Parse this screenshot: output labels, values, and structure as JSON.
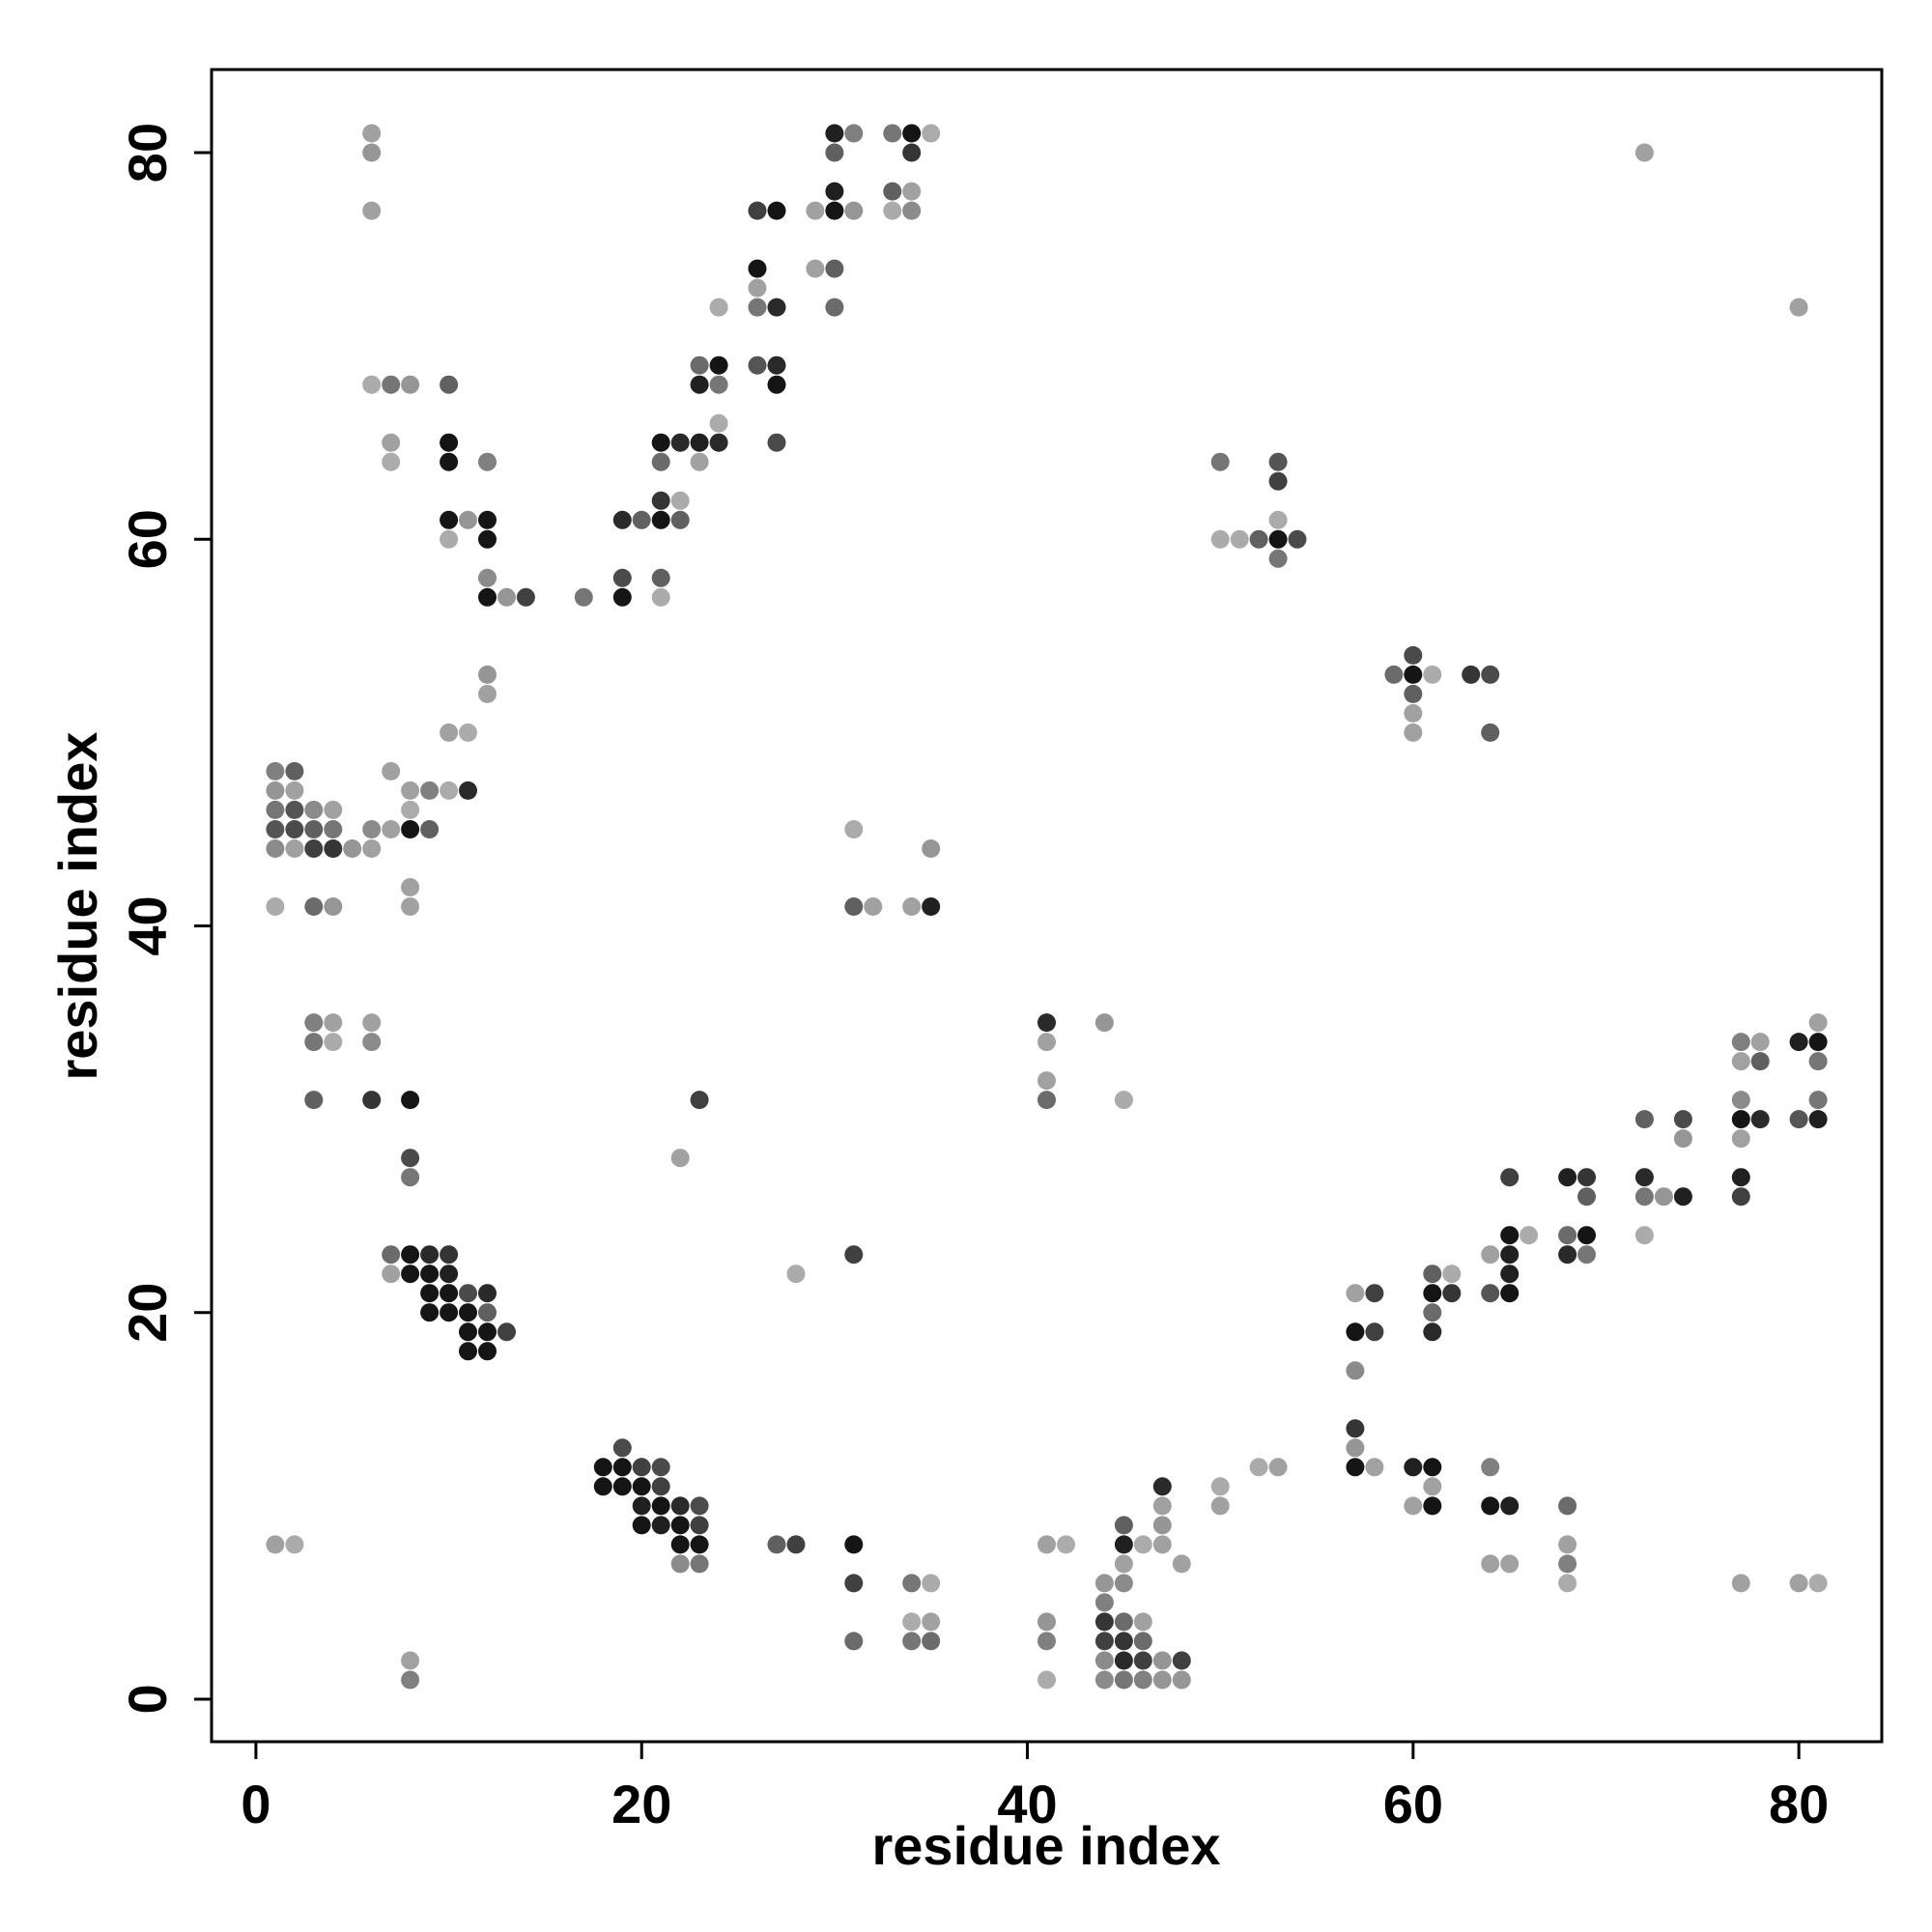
{
  "chart_data": {
    "type": "scatter",
    "title": "",
    "xlabel": "residue index",
    "ylabel": "residue index",
    "xlim": [
      -2.3,
      84.3
    ],
    "ylim": [
      -2.2,
      84.3
    ],
    "xticks": [
      0,
      20,
      40,
      60,
      80
    ],
    "yticks": [
      0,
      20,
      40,
      60,
      80
    ],
    "grid": false,
    "legend": "none",
    "points": [
      [
        1,
        8,
        0.3
      ],
      [
        2,
        8,
        0.25
      ],
      [
        8,
        2,
        0.3
      ],
      [
        8,
        1,
        0.45
      ],
      [
        1,
        48,
        0.45
      ],
      [
        2,
        48,
        0.6
      ],
      [
        1,
        47,
        0.35
      ],
      [
        2,
        47,
        0.3
      ],
      [
        1,
        46,
        0.5
      ],
      [
        2,
        46,
        0.65
      ],
      [
        3,
        46,
        0.4
      ],
      [
        4,
        46,
        0.3
      ],
      [
        1,
        45,
        0.65
      ],
      [
        2,
        45,
        0.7
      ],
      [
        3,
        45,
        0.6
      ],
      [
        4,
        45,
        0.5
      ],
      [
        6,
        45,
        0.4
      ],
      [
        7,
        45,
        0.3
      ],
      [
        8,
        45,
        0.95
      ],
      [
        9,
        45,
        0.6
      ],
      [
        1,
        44,
        0.4
      ],
      [
        2,
        44,
        0.3
      ],
      [
        3,
        44,
        0.75
      ],
      [
        4,
        44,
        0.8
      ],
      [
        5,
        44,
        0.35
      ],
      [
        6,
        44,
        0.3
      ],
      [
        1,
        41,
        0.25
      ],
      [
        3,
        41,
        0.55
      ],
      [
        4,
        41,
        0.35
      ],
      [
        7,
        48,
        0.3
      ],
      [
        8,
        47,
        0.3
      ],
      [
        9,
        47,
        0.45
      ],
      [
        10,
        47,
        0.25
      ],
      [
        11,
        47,
        0.85
      ],
      [
        8,
        46,
        0.25
      ],
      [
        8,
        42,
        0.3
      ],
      [
        8,
        41,
        0.3
      ],
      [
        10,
        50,
        0.3
      ],
      [
        11,
        50,
        0.25
      ],
      [
        12,
        53,
        0.35
      ],
      [
        12,
        52,
        0.3
      ],
      [
        6,
        81,
        0.3
      ],
      [
        6,
        80,
        0.35
      ],
      [
        6,
        77,
        0.3
      ],
      [
        6,
        68,
        0.25
      ],
      [
        7,
        68,
        0.5
      ],
      [
        8,
        68,
        0.35
      ],
      [
        10,
        68,
        0.6
      ],
      [
        7,
        65,
        0.3
      ],
      [
        7,
        64,
        0.25
      ],
      [
        10,
        65,
        0.95
      ],
      [
        10,
        64,
        0.95
      ],
      [
        12,
        64,
        0.45
      ],
      [
        10,
        61,
        0.95
      ],
      [
        11,
        61,
        0.35
      ],
      [
        12,
        61,
        0.95
      ],
      [
        10,
        60,
        0.25
      ],
      [
        12,
        60,
        0.95
      ],
      [
        12,
        58,
        0.4
      ],
      [
        12,
        57,
        0.95
      ],
      [
        13,
        57,
        0.35
      ],
      [
        14,
        57,
        0.75
      ],
      [
        17,
        57,
        0.5
      ],
      [
        19,
        58,
        0.7
      ],
      [
        19,
        57,
        0.95
      ],
      [
        19,
        61,
        0.85
      ],
      [
        20,
        61,
        0.6
      ],
      [
        21,
        61,
        0.95
      ],
      [
        22,
        61,
        0.6
      ],
      [
        21,
        62,
        0.8
      ],
      [
        22,
        62,
        0.25
      ],
      [
        21,
        58,
        0.6
      ],
      [
        21,
        57,
        0.25
      ],
      [
        21,
        65,
        0.95
      ],
      [
        22,
        65,
        0.85
      ],
      [
        23,
        65,
        0.9
      ],
      [
        24,
        65,
        0.85
      ],
      [
        21,
        64,
        0.55
      ],
      [
        23,
        64,
        0.3
      ],
      [
        23,
        69,
        0.55
      ],
      [
        24,
        69,
        0.95
      ],
      [
        23,
        68,
        0.9
      ],
      [
        24,
        68,
        0.5
      ],
      [
        24,
        66,
        0.25
      ],
      [
        24,
        72,
        0.25
      ],
      [
        26,
        77,
        0.75
      ],
      [
        27,
        77,
        0.95
      ],
      [
        26,
        74,
        0.95
      ],
      [
        26,
        73,
        0.3
      ],
      [
        26,
        72,
        0.5
      ],
      [
        27,
        72,
        0.85
      ],
      [
        26,
        69,
        0.65
      ],
      [
        27,
        69,
        0.85
      ],
      [
        27,
        68,
        0.95
      ],
      [
        27,
        65,
        0.7
      ],
      [
        29,
        77,
        0.3
      ],
      [
        30,
        77,
        0.95
      ],
      [
        31,
        77,
        0.35
      ],
      [
        30,
        78,
        0.9
      ],
      [
        30,
        81,
        0.9
      ],
      [
        31,
        81,
        0.45
      ],
      [
        30,
        80,
        0.6
      ],
      [
        29,
        74,
        0.3
      ],
      [
        30,
        74,
        0.6
      ],
      [
        30,
        72,
        0.55
      ],
      [
        33,
        81,
        0.5
      ],
      [
        34,
        81,
        0.95
      ],
      [
        35,
        81,
        0.25
      ],
      [
        34,
        80,
        0.8
      ],
      [
        33,
        78,
        0.6
      ],
      [
        34,
        78,
        0.3
      ],
      [
        33,
        77,
        0.25
      ],
      [
        34,
        77,
        0.4
      ],
      [
        3,
        35,
        0.45
      ],
      [
        4,
        35,
        0.3
      ],
      [
        6,
        35,
        0.3
      ],
      [
        3,
        34,
        0.5
      ],
      [
        4,
        34,
        0.25
      ],
      [
        6,
        34,
        0.4
      ],
      [
        3,
        31,
        0.6
      ],
      [
        6,
        31,
        0.8
      ],
      [
        8,
        31,
        0.95
      ],
      [
        8,
        28,
        0.7
      ],
      [
        8,
        27,
        0.5
      ],
      [
        7,
        23,
        0.55
      ],
      [
        8,
        23,
        0.95
      ],
      [
        9,
        23,
        0.85
      ],
      [
        10,
        23,
        0.8
      ],
      [
        7,
        22,
        0.3
      ],
      [
        8,
        22,
        0.95
      ],
      [
        9,
        22,
        0.95
      ],
      [
        10,
        22,
        0.9
      ],
      [
        9,
        21,
        0.95
      ],
      [
        10,
        21,
        0.95
      ],
      [
        11,
        21,
        0.7
      ],
      [
        12,
        21,
        0.85
      ],
      [
        9,
        20,
        0.95
      ],
      [
        10,
        20,
        0.95
      ],
      [
        11,
        20,
        0.95
      ],
      [
        12,
        20,
        0.6
      ],
      [
        11,
        19,
        0.95
      ],
      [
        12,
        19,
        0.95
      ],
      [
        13,
        19,
        0.75
      ],
      [
        11,
        18,
        0.95
      ],
      [
        12,
        18,
        0.95
      ],
      [
        18,
        12,
        0.95
      ],
      [
        19,
        12,
        0.95
      ],
      [
        20,
        12,
        0.75
      ],
      [
        21,
        12,
        0.7
      ],
      [
        19,
        13,
        0.7
      ],
      [
        18,
        11,
        0.95
      ],
      [
        19,
        11,
        0.95
      ],
      [
        20,
        11,
        0.95
      ],
      [
        21,
        11,
        0.75
      ],
      [
        20,
        10,
        0.9
      ],
      [
        21,
        10,
        0.95
      ],
      [
        22,
        10,
        0.85
      ],
      [
        23,
        10,
        0.7
      ],
      [
        20,
        9,
        0.95
      ],
      [
        21,
        9,
        0.9
      ],
      [
        22,
        9,
        0.95
      ],
      [
        23,
        9,
        0.75
      ],
      [
        22,
        8,
        0.95
      ],
      [
        23,
        8,
        0.95
      ],
      [
        22,
        7,
        0.4
      ],
      [
        23,
        7,
        0.5
      ],
      [
        27,
        8,
        0.6
      ],
      [
        28,
        8,
        0.75
      ],
      [
        31,
        8,
        0.95
      ],
      [
        31,
        6,
        0.75
      ],
      [
        31,
        3,
        0.55
      ],
      [
        34,
        6,
        0.5
      ],
      [
        35,
        6,
        0.25
      ],
      [
        34,
        4,
        0.25
      ],
      [
        35,
        4,
        0.3
      ],
      [
        34,
        3,
        0.5
      ],
      [
        35,
        3,
        0.55
      ],
      [
        22,
        28,
        0.3
      ],
      [
        23,
        31,
        0.75
      ],
      [
        28,
        22,
        0.25
      ],
      [
        31,
        23,
        0.75
      ],
      [
        31,
        45,
        0.25
      ],
      [
        31,
        41,
        0.6
      ],
      [
        32,
        41,
        0.3
      ],
      [
        34,
        41,
        0.3
      ],
      [
        35,
        41,
        0.9
      ],
      [
        35,
        44,
        0.35
      ],
      [
        41,
        35,
        0.85
      ],
      [
        41,
        34,
        0.3
      ],
      [
        44,
        35,
        0.35
      ],
      [
        41,
        32,
        0.3
      ],
      [
        41,
        31,
        0.55
      ],
      [
        45,
        31,
        0.25
      ],
      [
        41,
        8,
        0.3
      ],
      [
        42,
        8,
        0.25
      ],
      [
        41,
        4,
        0.35
      ],
      [
        41,
        3,
        0.45
      ],
      [
        41,
        1,
        0.25
      ],
      [
        44,
        6,
        0.35
      ],
      [
        45,
        6,
        0.4
      ],
      [
        44,
        5,
        0.45
      ],
      [
        44,
        4,
        0.8
      ],
      [
        45,
        4,
        0.55
      ],
      [
        46,
        4,
        0.3
      ],
      [
        44,
        3,
        0.75
      ],
      [
        45,
        3,
        0.8
      ],
      [
        46,
        3,
        0.55
      ],
      [
        44,
        2,
        0.4
      ],
      [
        45,
        2,
        0.85
      ],
      [
        46,
        2,
        0.75
      ],
      [
        47,
        2,
        0.35
      ],
      [
        48,
        2,
        0.75
      ],
      [
        44,
        1,
        0.4
      ],
      [
        45,
        1,
        0.5
      ],
      [
        46,
        1,
        0.45
      ],
      [
        47,
        1,
        0.35
      ],
      [
        48,
        1,
        0.35
      ],
      [
        45,
        9,
        0.6
      ],
      [
        45,
        8,
        0.9
      ],
      [
        46,
        8,
        0.25
      ],
      [
        47,
        8,
        0.3
      ],
      [
        45,
        7,
        0.3
      ],
      [
        47,
        9,
        0.35
      ],
      [
        47,
        10,
        0.3
      ],
      [
        47,
        11,
        0.85
      ],
      [
        48,
        7,
        0.3
      ],
      [
        50,
        11,
        0.25
      ],
      [
        50,
        10,
        0.3
      ],
      [
        52,
        12,
        0.25
      ],
      [
        53,
        12,
        0.3
      ],
      [
        50,
        64,
        0.5
      ],
      [
        50,
        60,
        0.25
      ],
      [
        51,
        60,
        0.25
      ],
      [
        52,
        60,
        0.6
      ],
      [
        53,
        60,
        0.95
      ],
      [
        54,
        60,
        0.7
      ],
      [
        53,
        64,
        0.65
      ],
      [
        53,
        63,
        0.75
      ],
      [
        53,
        61,
        0.25
      ],
      [
        53,
        59,
        0.5
      ],
      [
        59,
        53,
        0.55
      ],
      [
        60,
        53,
        0.95
      ],
      [
        61,
        53,
        0.25
      ],
      [
        60,
        54,
        0.7
      ],
      [
        60,
        52,
        0.6
      ],
      [
        60,
        51,
        0.3
      ],
      [
        60,
        50,
        0.3
      ],
      [
        63,
        53,
        0.8
      ],
      [
        64,
        53,
        0.7
      ],
      [
        64,
        50,
        0.6
      ],
      [
        57,
        21,
        0.3
      ],
      [
        58,
        21,
        0.75
      ],
      [
        57,
        19,
        0.95
      ],
      [
        58,
        19,
        0.75
      ],
      [
        57,
        17,
        0.4
      ],
      [
        57,
        14,
        0.8
      ],
      [
        57,
        13,
        0.35
      ],
      [
        57,
        12,
        0.95
      ],
      [
        58,
        12,
        0.3
      ],
      [
        60,
        12,
        0.9
      ],
      [
        61,
        12,
        0.95
      ],
      [
        60,
        10,
        0.3
      ],
      [
        61,
        10,
        0.95
      ],
      [
        61,
        11,
        0.3
      ],
      [
        61,
        22,
        0.6
      ],
      [
        62,
        22,
        0.25
      ],
      [
        61,
        21,
        0.95
      ],
      [
        62,
        21,
        0.8
      ],
      [
        61,
        20,
        0.55
      ],
      [
        61,
        19,
        0.85
      ],
      [
        64,
        23,
        0.3
      ],
      [
        65,
        23,
        0.9
      ],
      [
        64,
        21,
        0.65
      ],
      [
        65,
        21,
        0.95
      ],
      [
        65,
        22,
        0.9
      ],
      [
        65,
        24,
        0.95
      ],
      [
        66,
        24,
        0.25
      ],
      [
        65,
        27,
        0.75
      ],
      [
        64,
        12,
        0.45
      ],
      [
        64,
        10,
        0.95
      ],
      [
        65,
        10,
        0.9
      ],
      [
        64,
        7,
        0.3
      ],
      [
        65,
        7,
        0.3
      ],
      [
        68,
        10,
        0.55
      ],
      [
        68,
        8,
        0.3
      ],
      [
        68,
        7,
        0.45
      ],
      [
        68,
        6,
        0.25
      ],
      [
        68,
        27,
        0.9
      ],
      [
        69,
        27,
        0.8
      ],
      [
        69,
        26,
        0.6
      ],
      [
        68,
        24,
        0.55
      ],
      [
        69,
        24,
        0.95
      ],
      [
        68,
        23,
        0.85
      ],
      [
        69,
        23,
        0.5
      ],
      [
        72,
        30,
        0.6
      ],
      [
        74,
        30,
        0.7
      ],
      [
        72,
        27,
        0.85
      ],
      [
        72,
        26,
        0.5
      ],
      [
        73,
        26,
        0.35
      ],
      [
        74,
        26,
        0.9
      ],
      [
        74,
        29,
        0.35
      ],
      [
        72,
        24,
        0.25
      ],
      [
        77,
        34,
        0.45
      ],
      [
        78,
        34,
        0.3
      ],
      [
        77,
        33,
        0.3
      ],
      [
        78,
        33,
        0.6
      ],
      [
        77,
        31,
        0.4
      ],
      [
        77,
        30,
        0.95
      ],
      [
        78,
        30,
        0.85
      ],
      [
        77,
        29,
        0.3
      ],
      [
        77,
        27,
        0.9
      ],
      [
        77,
        26,
        0.75
      ],
      [
        80,
        34,
        0.9
      ],
      [
        81,
        34,
        0.95
      ],
      [
        81,
        35,
        0.3
      ],
      [
        81,
        33,
        0.5
      ],
      [
        80,
        30,
        0.65
      ],
      [
        81,
        30,
        0.9
      ],
      [
        81,
        31,
        0.5
      ],
      [
        72,
        80,
        0.3
      ],
      [
        80,
        72,
        0.3
      ],
      [
        77,
        6,
        0.3
      ],
      [
        80,
        6,
        0.3
      ],
      [
        81,
        6,
        0.25
      ]
    ]
  }
}
